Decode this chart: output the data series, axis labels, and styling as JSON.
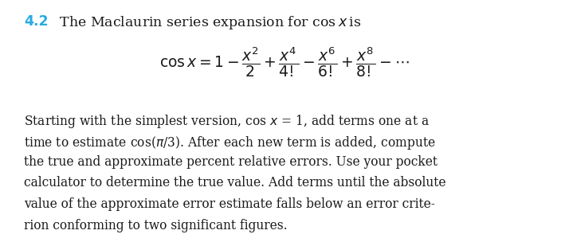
{
  "heading_number_color": "#29ABE2",
  "background_color": "#ffffff",
  "text_color": "#1a1a1a",
  "font_size_heading": 12.5,
  "font_size_equation": 13.5,
  "font_size_body": 11.2,
  "body_lines": [
    "Starting with the simplest version, cos $x$ = 1, add terms one at a",
    "time to estimate cos($\\pi$/3). After each new term is added, compute",
    "the true and approximate percent relative errors. Use your pocket",
    "calculator to determine the true value. Add terms until the absolute",
    "value of the approximate error estimate falls below an error crite-",
    "rion conforming to two significant figures."
  ]
}
